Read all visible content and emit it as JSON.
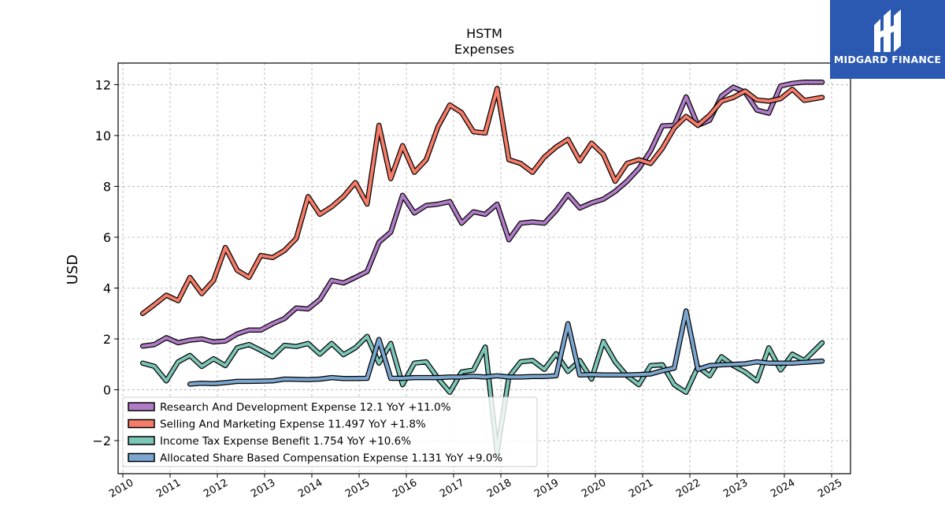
{
  "brand": {
    "name": "MIDGARD FINANCE",
    "color": "#2b58b0"
  },
  "chart_data": {
    "type": "line",
    "title": "HSTM",
    "subtitle": "Expenses",
    "xlabel": "",
    "ylabel": "USD",
    "xlim": [
      2009.9,
      2025.4
    ],
    "ylim": [
      -3.3,
      12.85
    ],
    "x_ticks": [
      "2010",
      "2011",
      "2012",
      "2013",
      "2014",
      "2015",
      "2016",
      "2017",
      "2018",
      "2019",
      "2020",
      "2021",
      "2022",
      "2023",
      "2024",
      "2025"
    ],
    "y_ticks": [
      12,
      10,
      8,
      6,
      4,
      2,
      0,
      -2
    ],
    "grid": true,
    "legend_position": "lower-left",
    "series": [
      {
        "name": "Research And Development Expense",
        "legend": "Research And Development Expense  12.1 YoY +11.0%",
        "color": "#b07cc6",
        "points": [
          [
            2010.42,
            1.72
          ],
          [
            2010.67,
            1.78
          ],
          [
            2010.92,
            2.05
          ],
          [
            2011.17,
            1.85
          ],
          [
            2011.42,
            1.95
          ],
          [
            2011.67,
            2.0
          ],
          [
            2011.92,
            1.88
          ],
          [
            2012.17,
            1.92
          ],
          [
            2012.42,
            2.2
          ],
          [
            2012.67,
            2.35
          ],
          [
            2012.92,
            2.35
          ],
          [
            2013.17,
            2.6
          ],
          [
            2013.42,
            2.8
          ],
          [
            2013.67,
            3.22
          ],
          [
            2013.92,
            3.18
          ],
          [
            2014.17,
            3.55
          ],
          [
            2014.42,
            4.3
          ],
          [
            2014.67,
            4.2
          ],
          [
            2014.92,
            4.42
          ],
          [
            2015.17,
            4.65
          ],
          [
            2015.42,
            5.8
          ],
          [
            2015.67,
            6.2
          ],
          [
            2015.92,
            7.65
          ],
          [
            2016.17,
            6.95
          ],
          [
            2016.42,
            7.25
          ],
          [
            2016.67,
            7.3
          ],
          [
            2016.92,
            7.4
          ],
          [
            2017.17,
            6.55
          ],
          [
            2017.42,
            7.0
          ],
          [
            2017.67,
            6.9
          ],
          [
            2017.92,
            7.3
          ],
          [
            2018.17,
            5.9
          ],
          [
            2018.42,
            6.55
          ],
          [
            2018.67,
            6.6
          ],
          [
            2018.92,
            6.55
          ],
          [
            2019.17,
            7.05
          ],
          [
            2019.42,
            7.68
          ],
          [
            2019.67,
            7.15
          ],
          [
            2019.92,
            7.35
          ],
          [
            2020.17,
            7.5
          ],
          [
            2020.42,
            7.8
          ],
          [
            2020.67,
            8.2
          ],
          [
            2020.92,
            8.7
          ],
          [
            2021.17,
            9.4
          ],
          [
            2021.42,
            10.38
          ],
          [
            2021.67,
            10.4
          ],
          [
            2021.92,
            11.52
          ],
          [
            2022.17,
            10.4
          ],
          [
            2022.42,
            10.6
          ],
          [
            2022.67,
            11.55
          ],
          [
            2022.92,
            11.9
          ],
          [
            2023.17,
            11.7
          ],
          [
            2023.42,
            11.0
          ],
          [
            2023.67,
            10.88
          ],
          [
            2023.92,
            11.95
          ],
          [
            2024.17,
            12.05
          ],
          [
            2024.42,
            12.1
          ],
          [
            2024.8,
            12.1
          ]
        ]
      },
      {
        "name": "Selling And Marketing Expense",
        "legend": "Selling And Marketing Expense  11.497 YoY +1.8%",
        "color": "#f47c68",
        "points": [
          [
            2010.42,
            3.0
          ],
          [
            2010.67,
            3.35
          ],
          [
            2010.92,
            3.72
          ],
          [
            2011.17,
            3.5
          ],
          [
            2011.42,
            4.42
          ],
          [
            2011.67,
            3.78
          ],
          [
            2011.92,
            4.3
          ],
          [
            2012.17,
            5.6
          ],
          [
            2012.42,
            4.7
          ],
          [
            2012.67,
            4.42
          ],
          [
            2012.92,
            5.28
          ],
          [
            2013.17,
            5.2
          ],
          [
            2013.42,
            5.48
          ],
          [
            2013.67,
            5.95
          ],
          [
            2013.92,
            7.6
          ],
          [
            2014.17,
            6.9
          ],
          [
            2014.42,
            7.2
          ],
          [
            2014.67,
            7.6
          ],
          [
            2014.92,
            8.15
          ],
          [
            2015.17,
            7.3
          ],
          [
            2015.42,
            10.4
          ],
          [
            2015.67,
            8.3
          ],
          [
            2015.92,
            9.6
          ],
          [
            2016.17,
            8.55
          ],
          [
            2016.42,
            9.05
          ],
          [
            2016.67,
            10.35
          ],
          [
            2016.92,
            11.2
          ],
          [
            2017.17,
            10.9
          ],
          [
            2017.42,
            10.15
          ],
          [
            2017.67,
            10.1
          ],
          [
            2017.92,
            11.85
          ],
          [
            2018.17,
            9.05
          ],
          [
            2018.42,
            8.9
          ],
          [
            2018.67,
            8.55
          ],
          [
            2018.92,
            9.15
          ],
          [
            2019.17,
            9.55
          ],
          [
            2019.42,
            9.85
          ],
          [
            2019.67,
            9.0
          ],
          [
            2019.92,
            9.7
          ],
          [
            2020.17,
            9.25
          ],
          [
            2020.42,
            8.2
          ],
          [
            2020.67,
            8.9
          ],
          [
            2020.92,
            9.05
          ],
          [
            2021.17,
            8.9
          ],
          [
            2021.42,
            9.5
          ],
          [
            2021.67,
            10.3
          ],
          [
            2021.92,
            10.75
          ],
          [
            2022.17,
            10.4
          ],
          [
            2022.42,
            10.8
          ],
          [
            2022.67,
            11.35
          ],
          [
            2022.92,
            11.5
          ],
          [
            2023.17,
            11.75
          ],
          [
            2023.42,
            11.4
          ],
          [
            2023.67,
            11.35
          ],
          [
            2023.92,
            11.45
          ],
          [
            2024.17,
            11.82
          ],
          [
            2024.42,
            11.38
          ],
          [
            2024.8,
            11.5
          ]
        ]
      },
      {
        "name": "Income Tax Expense Benefit",
        "legend": "Income Tax Expense Benefit  1.754 YoY +10.6%",
        "color": "#7cc6b8",
        "points": [
          [
            2010.42,
            1.05
          ],
          [
            2010.67,
            0.92
          ],
          [
            2010.92,
            0.35
          ],
          [
            2011.17,
            1.1
          ],
          [
            2011.42,
            1.35
          ],
          [
            2011.67,
            0.92
          ],
          [
            2011.92,
            1.22
          ],
          [
            2012.17,
            0.95
          ],
          [
            2012.42,
            1.65
          ],
          [
            2012.67,
            1.78
          ],
          [
            2012.92,
            1.55
          ],
          [
            2013.17,
            1.3
          ],
          [
            2013.42,
            1.75
          ],
          [
            2013.67,
            1.7
          ],
          [
            2013.92,
            1.82
          ],
          [
            2014.17,
            1.4
          ],
          [
            2014.42,
            1.82
          ],
          [
            2014.67,
            1.38
          ],
          [
            2014.92,
            1.65
          ],
          [
            2015.17,
            2.1
          ],
          [
            2015.42,
            1.05
          ],
          [
            2015.67,
            1.82
          ],
          [
            2015.92,
            0.2
          ],
          [
            2016.17,
            1.05
          ],
          [
            2016.42,
            1.1
          ],
          [
            2016.67,
            0.45
          ],
          [
            2016.92,
            -0.1
          ],
          [
            2017.17,
            0.7
          ],
          [
            2017.42,
            0.78
          ],
          [
            2017.67,
            1.68
          ],
          [
            2017.92,
            -2.45
          ],
          [
            2018.17,
            0.5
          ],
          [
            2018.42,
            1.1
          ],
          [
            2018.67,
            1.15
          ],
          [
            2018.92,
            0.8
          ],
          [
            2019.17,
            1.42
          ],
          [
            2019.42,
            0.72
          ],
          [
            2019.67,
            1.15
          ],
          [
            2019.92,
            0.42
          ],
          [
            2020.17,
            1.9
          ],
          [
            2020.42,
            1.1
          ],
          [
            2020.67,
            0.55
          ],
          [
            2020.92,
            0.2
          ],
          [
            2021.17,
            0.95
          ],
          [
            2021.42,
            0.98
          ],
          [
            2021.67,
            0.2
          ],
          [
            2021.92,
            -0.1
          ],
          [
            2022.17,
            0.9
          ],
          [
            2022.42,
            0.55
          ],
          [
            2022.67,
            1.3
          ],
          [
            2022.92,
            0.95
          ],
          [
            2023.17,
            0.7
          ],
          [
            2023.42,
            0.35
          ],
          [
            2023.67,
            1.65
          ],
          [
            2023.92,
            0.78
          ],
          [
            2024.17,
            1.4
          ],
          [
            2024.42,
            1.15
          ],
          [
            2024.8,
            1.85
          ]
        ]
      },
      {
        "name": "Allocated Share Based Compensation Expense",
        "legend": "Allocated Share Based Compensation Expense  1.131 YoY +9.0%",
        "color": "#7ba6cf",
        "points": [
          [
            2011.42,
            0.22
          ],
          [
            2011.67,
            0.26
          ],
          [
            2011.92,
            0.24
          ],
          [
            2012.17,
            0.28
          ],
          [
            2012.42,
            0.33
          ],
          [
            2012.67,
            0.33
          ],
          [
            2012.92,
            0.34
          ],
          [
            2013.17,
            0.35
          ],
          [
            2013.42,
            0.42
          ],
          [
            2013.67,
            0.41
          ],
          [
            2013.92,
            0.4
          ],
          [
            2014.17,
            0.42
          ],
          [
            2014.42,
            0.48
          ],
          [
            2014.67,
            0.44
          ],
          [
            2014.92,
            0.44
          ],
          [
            2015.17,
            0.45
          ],
          [
            2015.42,
            1.98
          ],
          [
            2015.67,
            0.45
          ],
          [
            2015.92,
            0.45
          ],
          [
            2016.17,
            0.48
          ],
          [
            2016.42,
            0.48
          ],
          [
            2016.67,
            0.48
          ],
          [
            2016.92,
            0.5
          ],
          [
            2017.17,
            0.5
          ],
          [
            2017.42,
            0.53
          ],
          [
            2017.67,
            0.5
          ],
          [
            2017.92,
            0.55
          ],
          [
            2018.17,
            0.5
          ],
          [
            2018.42,
            0.5
          ],
          [
            2018.67,
            0.52
          ],
          [
            2018.92,
            0.52
          ],
          [
            2019.17,
            0.55
          ],
          [
            2019.42,
            2.6
          ],
          [
            2019.67,
            0.58
          ],
          [
            2019.92,
            0.6
          ],
          [
            2020.17,
            0.58
          ],
          [
            2020.42,
            0.58
          ],
          [
            2020.67,
            0.58
          ],
          [
            2020.92,
            0.6
          ],
          [
            2021.17,
            0.62
          ],
          [
            2021.42,
            0.75
          ],
          [
            2021.67,
            0.85
          ],
          [
            2021.92,
            3.1
          ],
          [
            2022.17,
            0.8
          ],
          [
            2022.42,
            0.95
          ],
          [
            2022.67,
            0.98
          ],
          [
            2022.92,
            1.0
          ],
          [
            2023.17,
            1.02
          ],
          [
            2023.42,
            1.1
          ],
          [
            2023.67,
            1.05
          ],
          [
            2023.92,
            1.05
          ],
          [
            2024.17,
            1.05
          ],
          [
            2024.42,
            1.08
          ],
          [
            2024.8,
            1.13
          ]
        ]
      }
    ]
  }
}
